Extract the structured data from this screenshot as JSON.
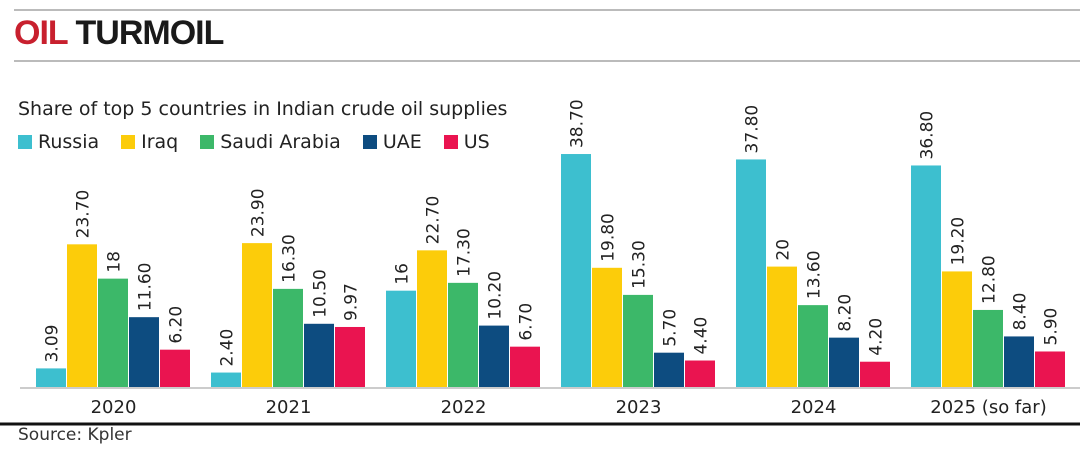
{
  "title": {
    "part1": "OIL",
    "part2": "TURMOIL"
  },
  "source": "Source: Kpler",
  "chart_data": {
    "type": "bar",
    "title": "Share of top 5 countries in Indian crude oil supplies",
    "categories": [
      "2020",
      "2021",
      "2022",
      "2023",
      "2024",
      "2025 (so far)"
    ],
    "series": [
      {
        "name": "Russia",
        "color": "#3dbfcf",
        "values": [
          3.09,
          2.4,
          16,
          38.7,
          37.8,
          36.8
        ],
        "labels": [
          "3.09",
          "2.40",
          "16",
          "38.70",
          "37.80",
          "36.80"
        ]
      },
      {
        "name": "Iraq",
        "color": "#fccc0a",
        "values": [
          23.7,
          23.9,
          22.7,
          19.8,
          20,
          19.2
        ],
        "labels": [
          "23.70",
          "23.90",
          "22.70",
          "19.80",
          "20",
          "19.20"
        ]
      },
      {
        "name": "Saudi Arabia",
        "color": "#3cb869",
        "values": [
          18,
          16.3,
          17.3,
          15.3,
          13.6,
          12.8
        ],
        "labels": [
          "18",
          "16.30",
          "17.30",
          "15.30",
          "13.60",
          "12.80"
        ]
      },
      {
        "name": "UAE",
        "color": "#0d4c80",
        "values": [
          11.6,
          10.5,
          10.2,
          5.7,
          8.2,
          8.4
        ],
        "labels": [
          "11.60",
          "10.50",
          "10.20",
          "5.70",
          "8.20",
          "8.40"
        ]
      },
      {
        "name": "US",
        "color": "#ea1450",
        "values": [
          6.2,
          9.97,
          6.7,
          4.4,
          4.2,
          5.9
        ],
        "labels": [
          "6.20",
          "9.97",
          "6.70",
          "4.40",
          "4.20",
          "5.90"
        ]
      }
    ],
    "xlabel": "",
    "ylabel": "",
    "ylim": [
      0,
      40
    ],
    "grid": false,
    "legend": "top-left"
  }
}
